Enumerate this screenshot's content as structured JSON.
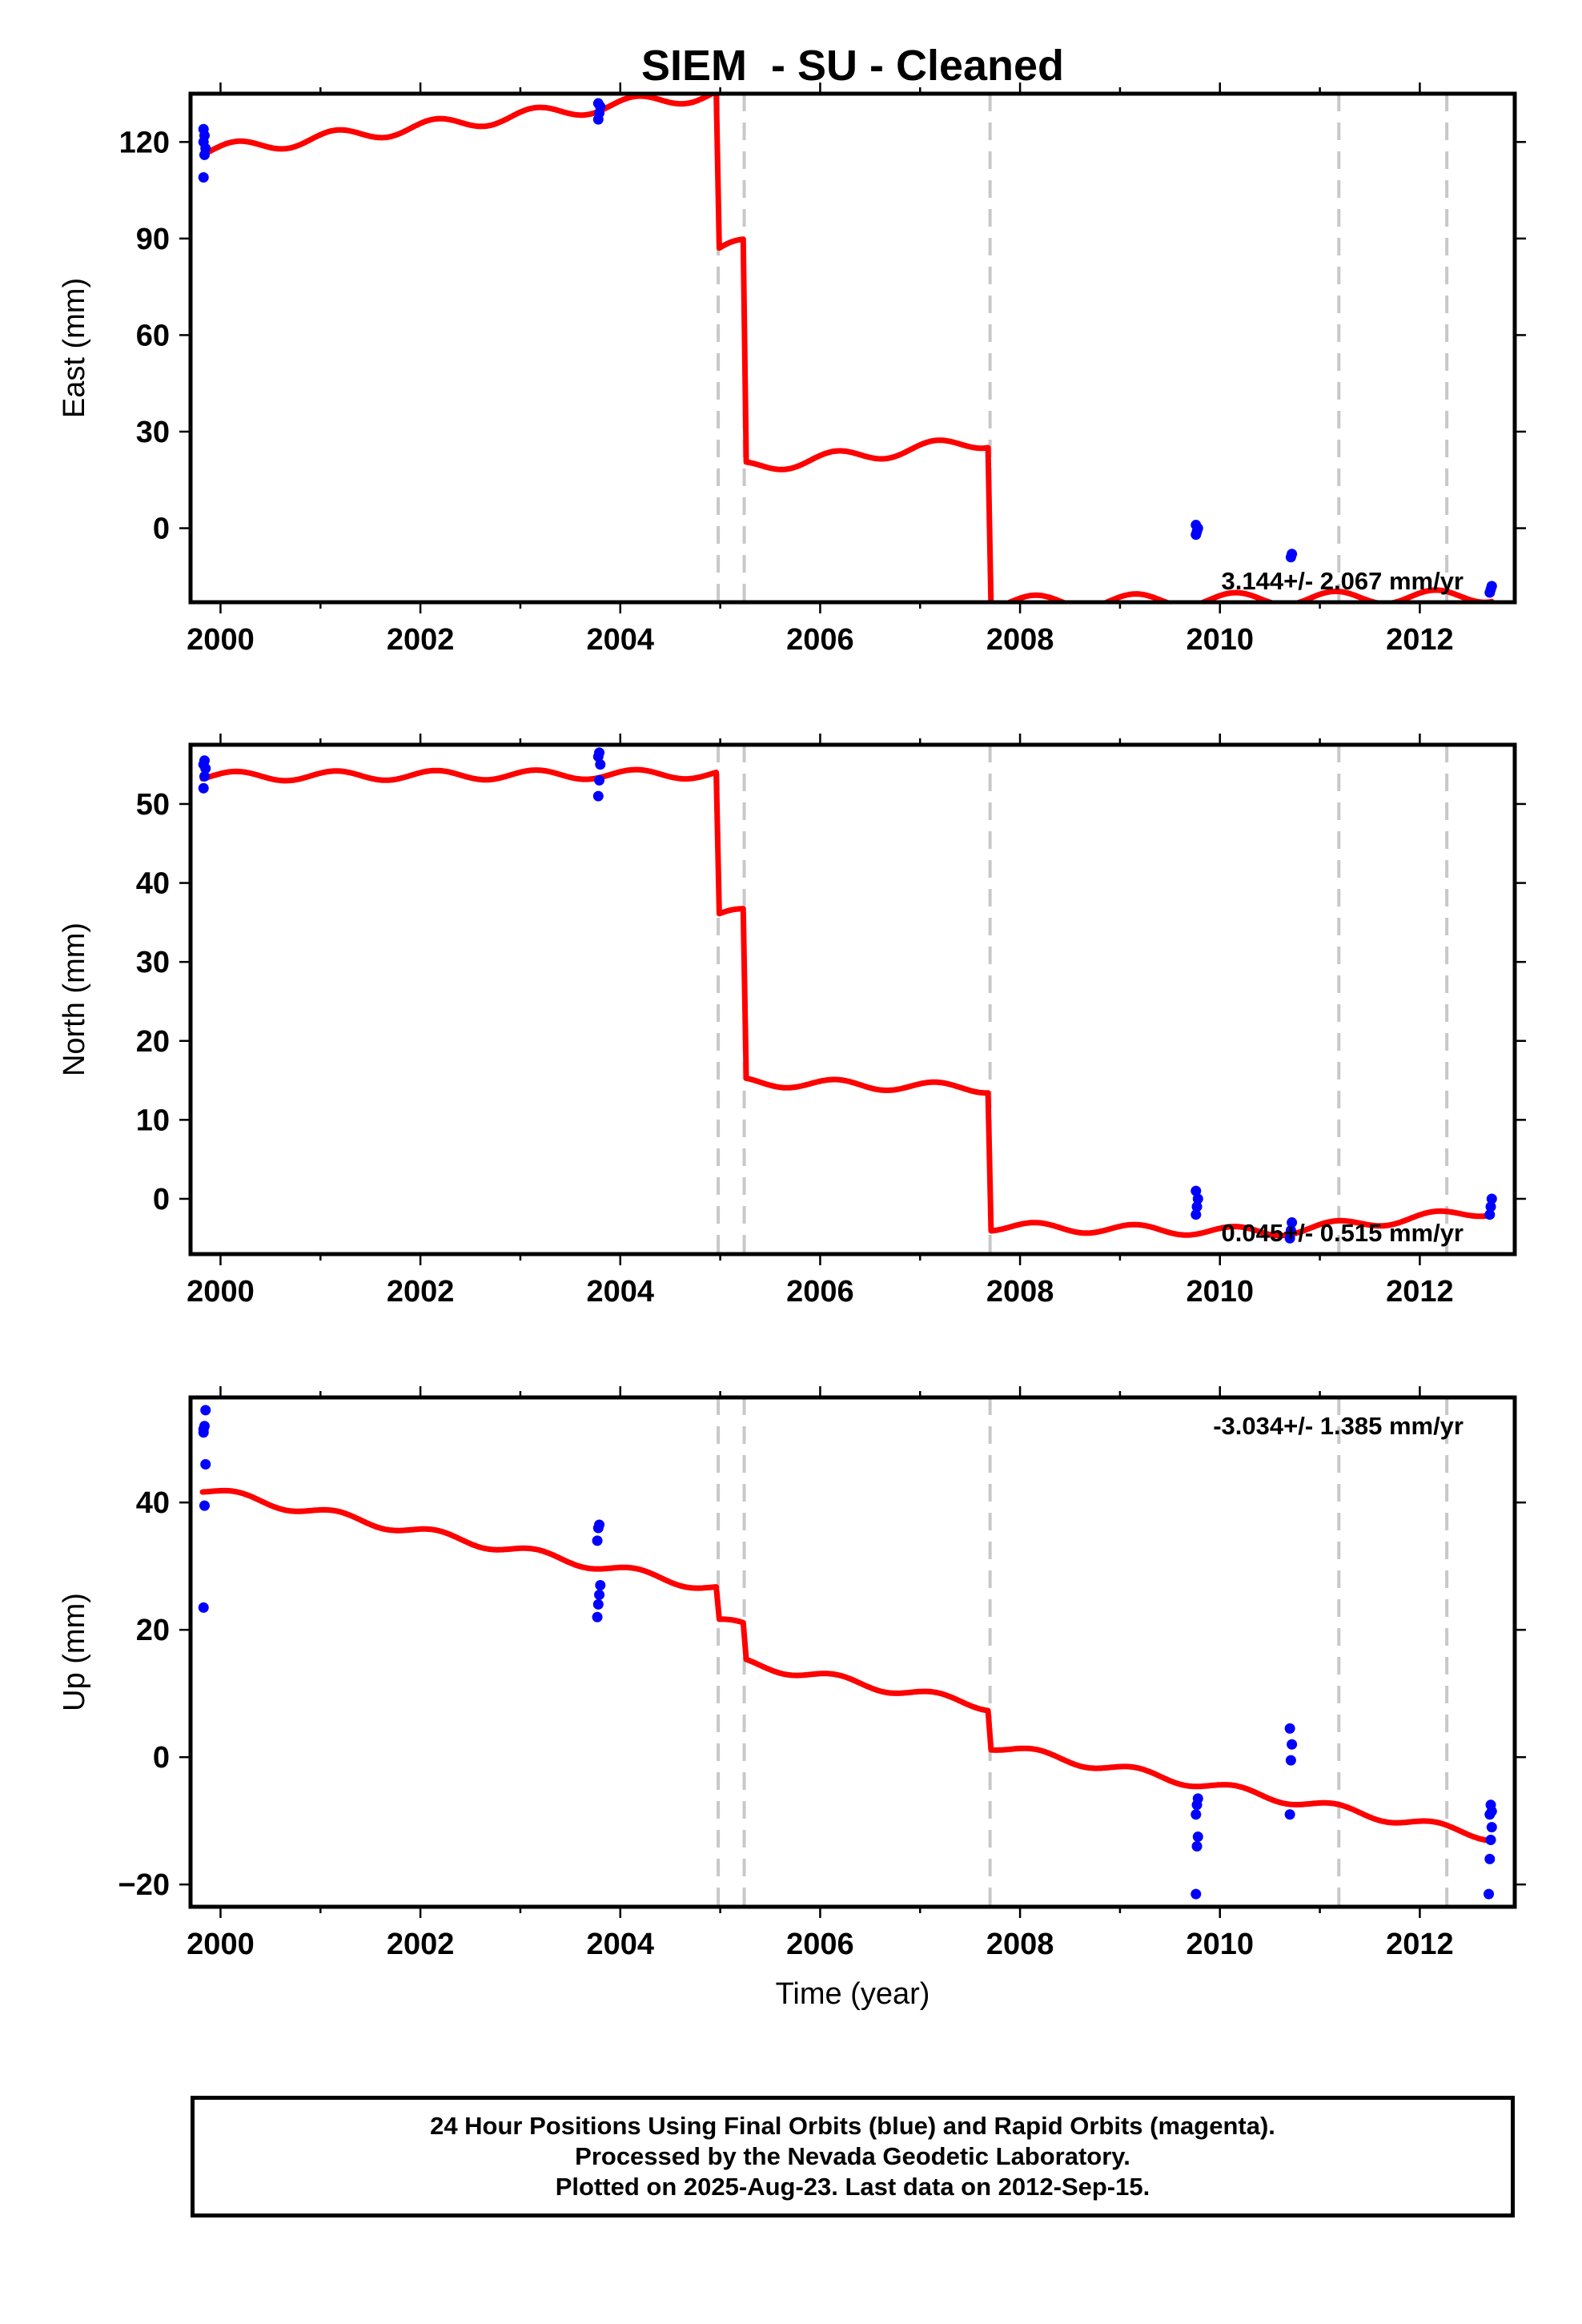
{
  "chart_data": [
    {
      "type": "line",
      "component": "east",
      "title": "SIEM  - SU - Cleaned",
      "xlabel": "",
      "ylabel": "East (mm)",
      "xlim": [
        1999.7,
        2012.95
      ],
      "ylim": [
        -23,
        135
      ],
      "xticks": [
        2000,
        2002,
        2004,
        2006,
        2008,
        2010,
        2012
      ],
      "yticks": [
        0,
        30,
        60,
        90,
        120
      ],
      "velocity": "3.144+/- 2.067 mm/yr",
      "velocity_position": "bottom-right",
      "breaks": [
        2004.98,
        2005.24,
        2007.7,
        2011.19,
        2012.27
      ],
      "model": {
        "color": "#ff0000",
        "x": [
          1999.82,
          2004.96,
          2004.99,
          2005.23,
          2005.26,
          2007.68,
          2007.71,
          2012.72
        ],
        "y": [
          117,
          135,
          86,
          88,
          19,
          27,
          -23,
          -21
        ],
        "seasonal_amplitude": 2
      },
      "observations": {
        "color": "#0000ff",
        "x": [
          1999.83,
          1999.84,
          1999.85,
          1999.83,
          1999.84,
          1999.83,
          2003.78,
          2003.79,
          2003.8,
          2003.78,
          2009.76,
          2009.77,
          2009.78,
          2009.76,
          2010.71,
          2010.72,
          2012.7,
          2012.71,
          2012.72
        ],
        "y": [
          109,
          116,
          118,
          120,
          122,
          124,
          127,
          129,
          131,
          132,
          -2,
          -1,
          0,
          1,
          -9,
          -8,
          -20,
          -19,
          -18
        ]
      }
    },
    {
      "type": "line",
      "component": "north",
      "title": "",
      "xlabel": "",
      "ylabel": "North (mm)",
      "xlim": [
        1999.7,
        2012.95
      ],
      "ylim": [
        -7,
        57.5
      ],
      "xticks": [
        2000,
        2002,
        2004,
        2006,
        2008,
        2010,
        2012
      ],
      "yticks": [
        0,
        10,
        20,
        30,
        40,
        50
      ],
      "velocity": "0.045+/- 0.515 mm/yr",
      "velocity_position": "bottom-right",
      "breaks": [
        2004.98,
        2005.24,
        2007.7,
        2011.19,
        2012.27
      ],
      "model": {
        "color": "#ff0000",
        "x": [
          1999.82,
          2004.96,
          2004.99,
          2005.23,
          2005.26,
          2007.68,
          2007.71,
          2010.5,
          2012.72
        ],
        "y": [
          53.5,
          53.8,
          35.8,
          36.2,
          14.8,
          14.0,
          -3.5,
          -4.2,
          -1.5
        ],
        "seasonal_amplitude": 0.6
      },
      "observations": {
        "color": "#0000ff",
        "x": [
          1999.83,
          1999.84,
          1999.85,
          1999.83,
          1999.84,
          2003.78,
          2003.79,
          2003.8,
          2003.78,
          2003.79,
          2009.76,
          2009.77,
          2009.78,
          2009.76,
          2010.7,
          2010.71,
          2010.72,
          2012.7,
          2012.71,
          2012.72
        ],
        "y": [
          52,
          53.5,
          54.5,
          55,
          55.5,
          51,
          53,
          55,
          56,
          56.5,
          -2,
          -1,
          0,
          1,
          -5,
          -4,
          -3,
          -2,
          -1,
          0
        ]
      }
    },
    {
      "type": "line",
      "component": "up",
      "title": "",
      "xlabel": "Time (year)",
      "ylabel": "Up (mm)",
      "xlim": [
        1999.7,
        2012.95
      ],
      "ylim": [
        -23.5,
        56.5
      ],
      "xticks": [
        2000,
        2002,
        2004,
        2006,
        2008,
        2010,
        2012
      ],
      "yticks": [
        -20,
        0,
        20,
        40
      ],
      "velocity": "-3.034+/- 1.385 mm/yr",
      "velocity_position": "top-right",
      "breaks": [
        2004.98,
        2005.24,
        2007.7,
        2011.19,
        2012.27
      ],
      "model": {
        "color": "#ff0000",
        "x": [
          1999.82,
          2004.96,
          2004.99,
          2005.23,
          2005.26,
          2007.68,
          2007.71,
          2012.72
        ],
        "y": [
          42,
          26.5,
          21.3,
          20.5,
          14.8,
          8.0,
          1.8,
          -12.5
        ],
        "seasonal_amplitude": 0.7
      },
      "observations": {
        "color": "#0000ff",
        "x": [
          1999.83,
          1999.84,
          1999.85,
          1999.83,
          1999.84,
          1999.85,
          1999.83,
          2003.77,
          2003.78,
          2003.79,
          2003.8,
          2003.77,
          2003.78,
          2003.79,
          2009.76,
          2009.77,
          2009.78,
          2009.76,
          2009.77,
          2009.78,
          2010.7,
          2010.71,
          2010.72,
          2010.7,
          2012.69,
          2012.7,
          2012.71,
          2012.72,
          2012.7,
          2012.71,
          2012.72
        ],
        "y": [
          23.5,
          39.5,
          46,
          51,
          52,
          54.5,
          51.5,
          22,
          24,
          25.5,
          27,
          34,
          36,
          36.5,
          -21.5,
          -14,
          -12.5,
          -9,
          -7.5,
          -6.5,
          -9,
          -0.5,
          2,
          4.5,
          -21.5,
          -16,
          -13,
          -11,
          -9,
          -7.5,
          -8.5
        ]
      }
    }
  ],
  "caption": {
    "line1": "24 Hour Positions Using Final Orbits (blue) and Rapid Orbits (magenta).",
    "line2": "Processed by the Nevada Geodetic Laboratory.",
    "line3": "Plotted on 2025-Aug-23. Last data on 2012-Sep-15."
  }
}
